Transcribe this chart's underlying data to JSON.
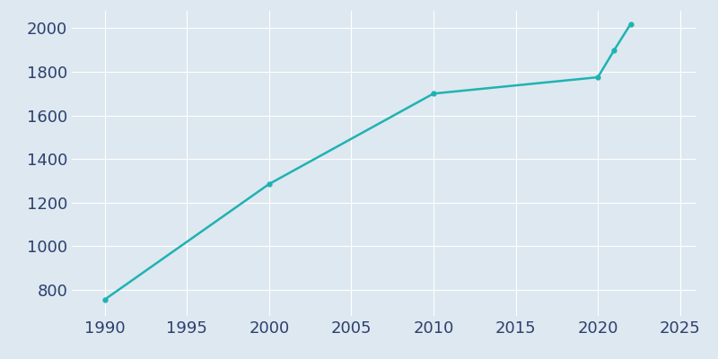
{
  "years": [
    1990,
    2000,
    2010,
    2020,
    2021,
    2022
  ],
  "population": [
    755,
    1285,
    1700,
    1775,
    1900,
    2020
  ],
  "line_color": "#20b2b2",
  "marker": "o",
  "marker_size": 3.5,
  "line_width": 1.8,
  "background_color": "#dde8f0",
  "plot_bg_color": "#dde8f0",
  "grid_color": "#ffffff",
  "tick_label_color": "#2d3f6e",
  "xlim": [
    1988,
    2026
  ],
  "ylim": [
    680,
    2080
  ],
  "xticks": [
    1990,
    1995,
    2000,
    2005,
    2010,
    2015,
    2020,
    2025
  ],
  "yticks": [
    800,
    1000,
    1200,
    1400,
    1600,
    1800,
    2000
  ],
  "tick_fontsize": 13
}
